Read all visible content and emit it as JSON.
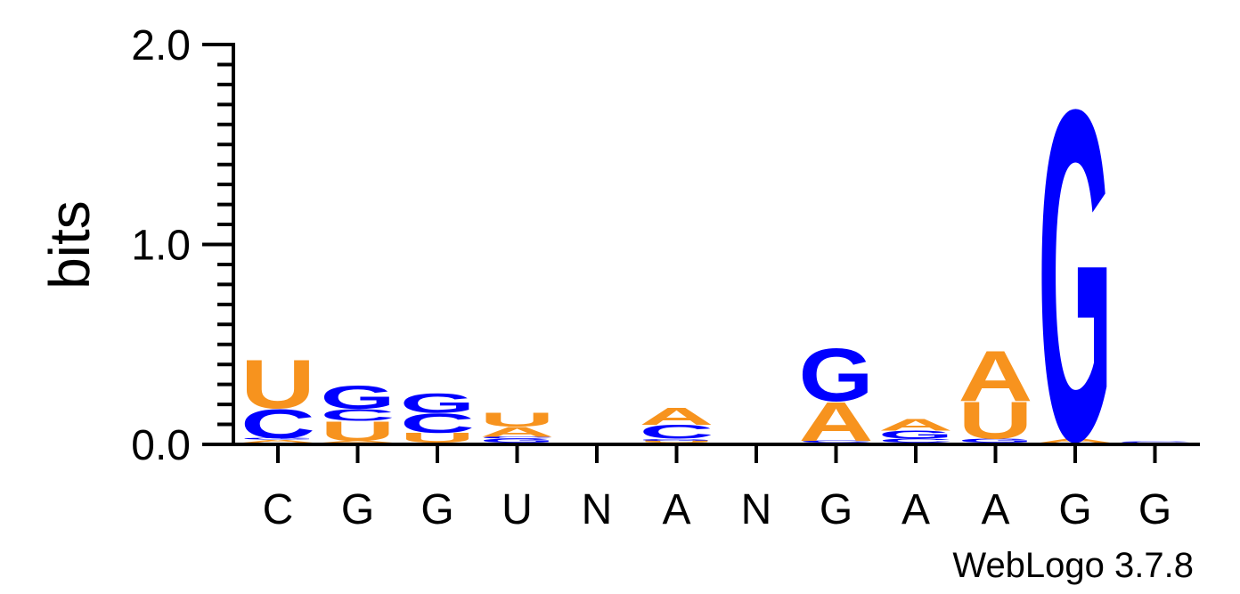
{
  "chart_data": {
    "type": "sequence-logo",
    "ylabel": "bits",
    "ylim": [
      0,
      2
    ],
    "yticks": [
      "0.0",
      "1.0",
      "2.0"
    ],
    "credit": "WebLogo 3.7.8",
    "colors": {
      "A": "#f7931e",
      "U": "#f7931e",
      "C": "#0000ff",
      "G": "#0000ff"
    },
    "positions": [
      {
        "label": "C",
        "stack": [
          {
            "letter": "A",
            "bits": 0.015
          },
          {
            "letter": "G",
            "bits": 0.008
          },
          {
            "letter": "C",
            "bits": 0.15
          },
          {
            "letter": "U",
            "bits": 0.25
          }
        ]
      },
      {
        "label": "G",
        "stack": [
          {
            "letter": "A",
            "bits": 0.01
          },
          {
            "letter": "U",
            "bits": 0.1
          },
          {
            "letter": "C",
            "bits": 0.06
          },
          {
            "letter": "G",
            "bits": 0.12
          }
        ]
      },
      {
        "label": "G",
        "stack": [
          {
            "letter": "U",
            "bits": 0.05
          },
          {
            "letter": "C",
            "bits": 0.1
          },
          {
            "letter": "G",
            "bits": 0.1
          }
        ]
      },
      {
        "label": "U",
        "stack": [
          {
            "letter": "G",
            "bits": 0.02
          },
          {
            "letter": "C",
            "bits": 0.01
          },
          {
            "letter": "A",
            "bits": 0.05
          },
          {
            "letter": "U",
            "bits": 0.07
          }
        ]
      },
      {
        "label": "N",
        "stack": []
      },
      {
        "label": "A",
        "stack": [
          {
            "letter": "U",
            "bits": 0.01
          },
          {
            "letter": "G",
            "bits": 0.01
          },
          {
            "letter": "C",
            "bits": 0.07
          },
          {
            "letter": "A",
            "bits": 0.09
          }
        ]
      },
      {
        "label": "N",
        "stack": []
      },
      {
        "label": "G",
        "stack": [
          {
            "letter": "C",
            "bits": 0.01
          },
          {
            "letter": "A",
            "bits": 0.2
          },
          {
            "letter": "G",
            "bits": 0.27
          }
        ]
      },
      {
        "label": "A",
        "stack": [
          {
            "letter": "C",
            "bits": 0.02
          },
          {
            "letter": "G",
            "bits": 0.04
          },
          {
            "letter": "A",
            "bits": 0.06
          }
        ]
      },
      {
        "label": "A",
        "stack": [
          {
            "letter": "G",
            "bits": 0.02
          },
          {
            "letter": "U",
            "bits": 0.19
          },
          {
            "letter": "A",
            "bits": 0.26
          }
        ]
      },
      {
        "label": "G",
        "stack": [
          {
            "letter": "A",
            "bits": 0.02
          },
          {
            "letter": "G",
            "bits": 1.7
          }
        ]
      },
      {
        "label": "G",
        "stack": [
          {
            "letter": "C",
            "bits": 0.005
          }
        ]
      }
    ]
  }
}
